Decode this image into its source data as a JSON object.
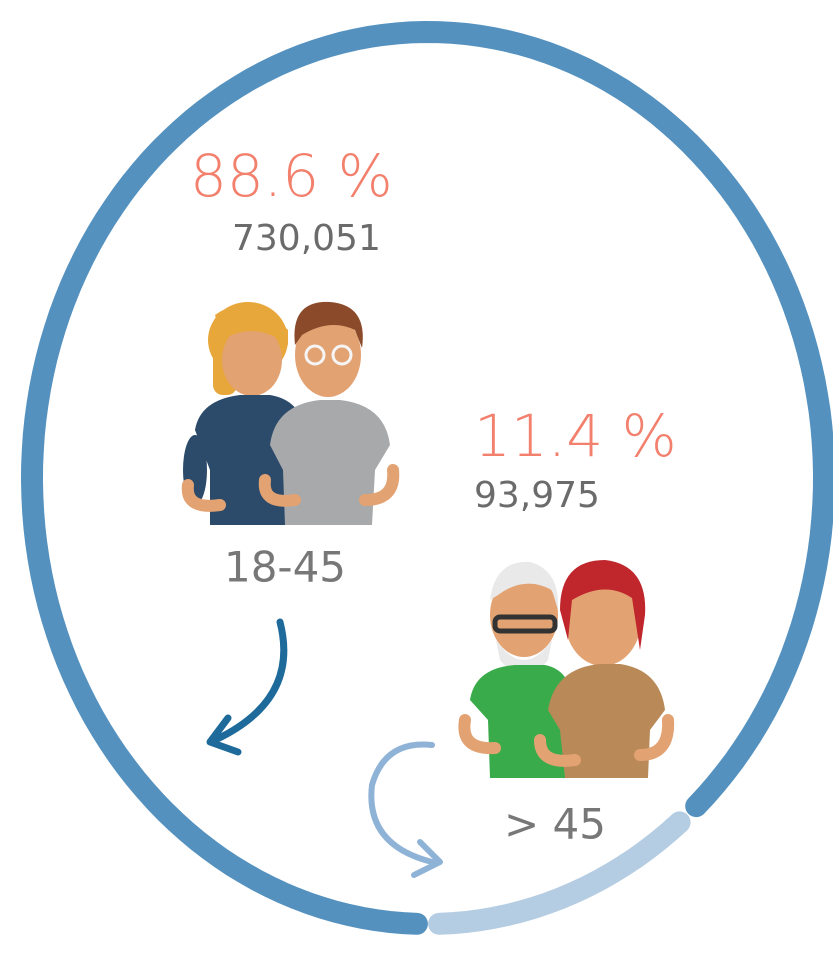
{
  "chart_data": {
    "type": "donut",
    "categories": [
      "18-45",
      "> 45"
    ],
    "values": [
      88.6,
      11.4
    ],
    "value_labels": [
      "88.6 %",
      "11.4 %"
    ],
    "counts": [
      "730,051",
      "93,975"
    ],
    "colors": [
      "#5491bf",
      "#b5cde3"
    ]
  }
}
